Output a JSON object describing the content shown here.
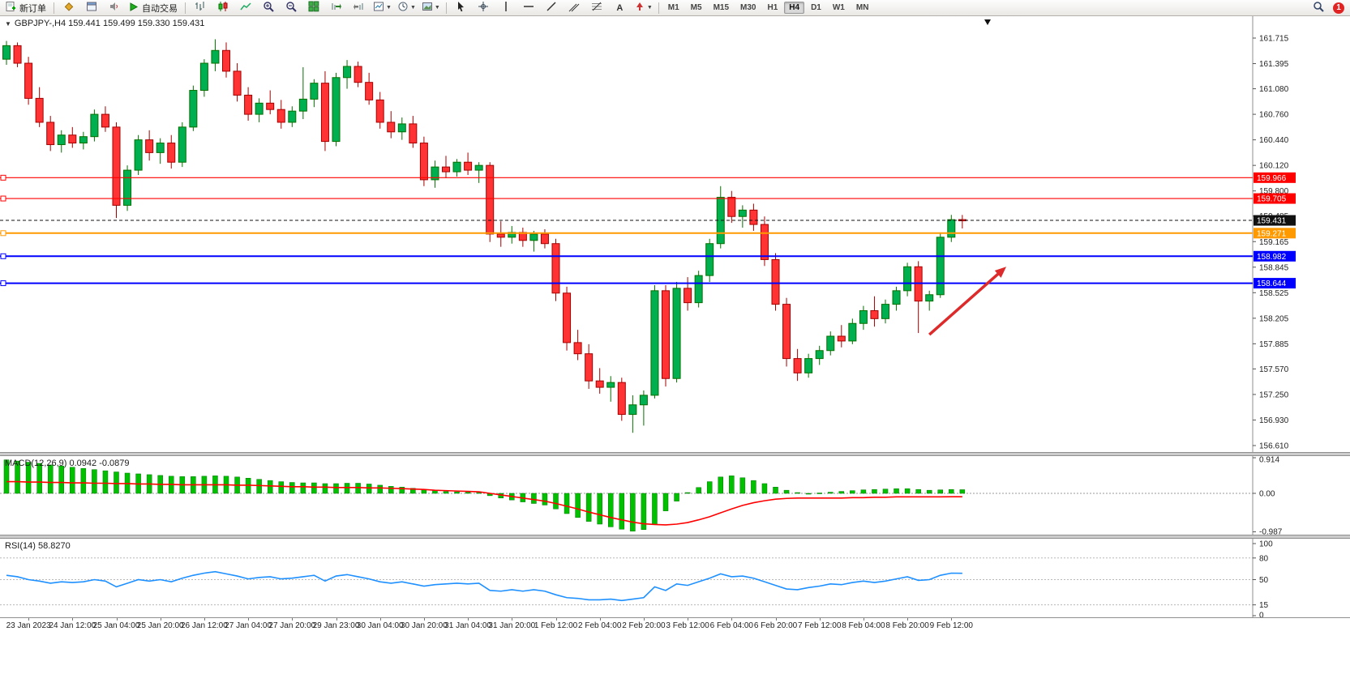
{
  "toolbar": {
    "new_order": "新订单",
    "autotrade": "自动交易",
    "timeframes": [
      "M1",
      "M5",
      "M15",
      "M30",
      "H1",
      "H4",
      "D1",
      "W1",
      "MN"
    ],
    "active_timeframe": "H4",
    "notification_badge": "1"
  },
  "chart": {
    "collapse_glyph": "▼",
    "symbol_ohlc": "GBPJPY-,H4 159.441 159.499 159.330 159.431"
  },
  "chart_data": {
    "type": "candlestick",
    "symbol": "GBPJPY-",
    "period": "H4",
    "current": {
      "open": "159.441",
      "high": "159.499",
      "low": "159.330",
      "close": "159.431"
    },
    "up_color": "#00B050",
    "up_stroke": "#067000",
    "down_color": "#FF3333",
    "down_stroke": "#A50000",
    "price_axis": [
      "161.715",
      "161.395",
      "161.080",
      "160.760",
      "160.440",
      "160.120",
      "159.800",
      "159.485",
      "159.165",
      "158.845",
      "158.525",
      "158.205",
      "157.885",
      "157.570",
      "157.250",
      "156.930",
      "156.610"
    ],
    "hlines": [
      {
        "label": "159.966",
        "value": 159.966,
        "color": "#FF0000",
        "width": 1.2
      },
      {
        "label": "159.705",
        "value": 159.705,
        "color": "#FF0000",
        "width": 1.2
      },
      {
        "label": "159.271",
        "value": 159.271,
        "color": "#FF9900",
        "width": 2
      },
      {
        "label": "158.982",
        "value": 158.982,
        "color": "#0000FF",
        "width": 2
      },
      {
        "label": "158.644",
        "value": 158.644,
        "color": "#0000FF",
        "width": 2
      }
    ],
    "last_price": {
      "label": "159.431",
      "value": 159.431,
      "color": "#111111"
    },
    "arrow": {
      "from_index": 84,
      "from_price": 158.0,
      "to_index": 91,
      "to_price": 158.85,
      "color": "#DD2A2A"
    },
    "top_marker_index": 89.3,
    "candles": [
      [
        161.45,
        161.68,
        161.38,
        161.62
      ],
      [
        161.62,
        161.66,
        161.35,
        161.4
      ],
      [
        161.4,
        161.48,
        160.88,
        160.96
      ],
      [
        160.96,
        161.1,
        160.6,
        160.66
      ],
      [
        160.66,
        160.74,
        160.3,
        160.38
      ],
      [
        160.38,
        160.56,
        160.28,
        160.5
      ],
      [
        160.5,
        160.6,
        160.34,
        160.4
      ],
      [
        160.4,
        160.54,
        160.32,
        160.48
      ],
      [
        160.48,
        160.82,
        160.42,
        160.76
      ],
      [
        160.76,
        160.86,
        160.54,
        160.6
      ],
      [
        160.6,
        160.66,
        159.46,
        159.62
      ],
      [
        159.62,
        160.12,
        159.55,
        160.06
      ],
      [
        160.06,
        160.5,
        160.0,
        160.44
      ],
      [
        160.44,
        160.56,
        160.18,
        160.28
      ],
      [
        160.28,
        160.46,
        160.14,
        160.4
      ],
      [
        160.4,
        160.5,
        160.08,
        160.16
      ],
      [
        160.16,
        160.66,
        160.1,
        160.6
      ],
      [
        160.6,
        161.12,
        160.55,
        161.06
      ],
      [
        161.06,
        161.45,
        160.98,
        161.4
      ],
      [
        161.4,
        161.7,
        161.3,
        161.56
      ],
      [
        161.56,
        161.66,
        161.22,
        161.3
      ],
      [
        161.3,
        161.4,
        160.92,
        161.0
      ],
      [
        161.0,
        161.1,
        160.68,
        160.76
      ],
      [
        160.76,
        160.96,
        160.66,
        160.9
      ],
      [
        160.9,
        161.06,
        160.76,
        160.82
      ],
      [
        160.82,
        160.94,
        160.58,
        160.66
      ],
      [
        160.66,
        160.86,
        160.6,
        160.8
      ],
      [
        160.8,
        161.35,
        160.7,
        160.95
      ],
      [
        160.95,
        161.2,
        160.85,
        161.15
      ],
      [
        161.15,
        161.3,
        160.3,
        160.42
      ],
      [
        160.42,
        161.28,
        160.36,
        161.22
      ],
      [
        161.22,
        161.44,
        161.08,
        161.36
      ],
      [
        161.36,
        161.42,
        161.1,
        161.16
      ],
      [
        161.16,
        161.28,
        160.88,
        160.94
      ],
      [
        160.94,
        161.04,
        160.58,
        160.66
      ],
      [
        160.66,
        160.8,
        160.46,
        160.54
      ],
      [
        160.54,
        160.72,
        160.44,
        160.64
      ],
      [
        160.64,
        160.74,
        160.34,
        160.4
      ],
      [
        160.4,
        160.48,
        159.86,
        159.94
      ],
      [
        159.94,
        160.18,
        159.84,
        160.1
      ],
      [
        160.1,
        160.24,
        159.96,
        160.04
      ],
      [
        160.04,
        160.2,
        159.98,
        160.16
      ],
      [
        160.16,
        160.28,
        160.0,
        160.06
      ],
      [
        160.06,
        160.16,
        159.9,
        160.12
      ],
      [
        160.12,
        160.16,
        159.16,
        159.26
      ],
      [
        159.26,
        159.42,
        159.1,
        159.22
      ],
      [
        159.22,
        159.36,
        159.14,
        159.28
      ],
      [
        159.28,
        159.34,
        159.1,
        159.18
      ],
      [
        159.18,
        159.3,
        159.04,
        159.26
      ],
      [
        159.26,
        159.32,
        159.08,
        159.14
      ],
      [
        159.14,
        159.2,
        158.42,
        158.52
      ],
      [
        158.52,
        158.6,
        157.8,
        157.9
      ],
      [
        157.9,
        158.06,
        157.68,
        157.76
      ],
      [
        157.76,
        157.88,
        157.32,
        157.42
      ],
      [
        157.42,
        157.58,
        157.26,
        157.34
      ],
      [
        157.34,
        157.48,
        157.16,
        157.4
      ],
      [
        157.4,
        157.46,
        156.92,
        157.0
      ],
      [
        157.0,
        157.24,
        156.77,
        157.12
      ],
      [
        157.12,
        157.3,
        156.86,
        157.24
      ],
      [
        157.24,
        158.62,
        157.2,
        158.55
      ],
      [
        158.55,
        158.62,
        157.35,
        157.45
      ],
      [
        157.45,
        158.66,
        157.4,
        158.58
      ],
      [
        158.58,
        158.72,
        158.3,
        158.4
      ],
      [
        158.4,
        158.8,
        158.34,
        158.74
      ],
      [
        158.74,
        159.2,
        158.66,
        159.14
      ],
      [
        159.14,
        159.86,
        159.08,
        159.72
      ],
      [
        159.72,
        159.8,
        159.4,
        159.48
      ],
      [
        159.48,
        159.62,
        159.34,
        159.56
      ],
      [
        159.56,
        159.64,
        159.3,
        159.38
      ],
      [
        159.38,
        159.48,
        158.86,
        158.94
      ],
      [
        158.94,
        159.02,
        158.3,
        158.38
      ],
      [
        158.38,
        158.46,
        157.6,
        157.7
      ],
      [
        157.7,
        157.82,
        157.42,
        157.52
      ],
      [
        157.52,
        157.76,
        157.46,
        157.7
      ],
      [
        157.7,
        157.86,
        157.62,
        157.8
      ],
      [
        157.8,
        158.04,
        157.74,
        157.98
      ],
      [
        157.98,
        158.12,
        157.84,
        157.92
      ],
      [
        157.92,
        158.2,
        157.88,
        158.14
      ],
      [
        158.14,
        158.36,
        158.06,
        158.3
      ],
      [
        158.3,
        158.48,
        158.1,
        158.2
      ],
      [
        158.2,
        158.44,
        158.14,
        158.38
      ],
      [
        158.38,
        158.6,
        158.3,
        158.55
      ],
      [
        158.55,
        158.9,
        158.48,
        158.85
      ],
      [
        158.85,
        158.92,
        158.02,
        158.42
      ],
      [
        158.42,
        158.55,
        158.3,
        158.5
      ],
      [
        158.5,
        159.28,
        158.46,
        159.22
      ],
      [
        159.22,
        159.5,
        159.16,
        159.44
      ],
      [
        159.441,
        159.499,
        159.33,
        159.431
      ]
    ],
    "time_labels": [
      "23 Jan 2023",
      "24 Jan 12:00",
      "25 Jan 04:00",
      "25 Jan 20:00",
      "26 Jan 12:00",
      "27 Jan 04:00",
      "27 Jan 20:00",
      "29 Jan 23:00",
      "30 Jan 04:00",
      "30 Jan 20:00",
      "31 Jan 04:00",
      "31 Jan 20:00",
      "1 Feb 12:00",
      "2 Feb 04:00",
      "2 Feb 20:00",
      "3 Feb 12:00",
      "6 Feb 04:00",
      "6 Feb 20:00",
      "7 Feb 12:00",
      "8 Feb 04:00",
      "8 Feb 20:00",
      "9 Feb 12:00"
    ],
    "time_label_start_index": 2,
    "time_label_step": 4,
    "macd": {
      "label": "MACD(12,26,9)",
      "value_main": "0.0942",
      "value_signal": "-0.0879",
      "hist_color": "#00C000",
      "signal_color": "#FF0000",
      "axis": [
        {
          "label": "0.914",
          "value": 0.914
        },
        {
          "label": "0.00",
          "value": 0
        },
        {
          "label": "-0.987",
          "value": -0.987
        }
      ],
      "histogram": [
        0.86,
        0.83,
        0.8,
        0.77,
        0.73,
        0.7,
        0.67,
        0.64,
        0.61,
        0.58,
        0.55,
        0.52,
        0.5,
        0.48,
        0.46,
        0.44,
        0.43,
        0.43,
        0.44,
        0.45,
        0.44,
        0.42,
        0.39,
        0.36,
        0.33,
        0.3,
        0.28,
        0.27,
        0.27,
        0.25,
        0.25,
        0.26,
        0.26,
        0.24,
        0.21,
        0.18,
        0.16,
        0.13,
        0.1,
        0.07,
        0.05,
        0.04,
        0.03,
        0.02,
        -0.06,
        -0.12,
        -0.17,
        -0.22,
        -0.26,
        -0.3,
        -0.4,
        -0.52,
        -0.62,
        -0.72,
        -0.79,
        -0.86,
        -0.92,
        -0.97,
        -0.93,
        -0.8,
        -0.45,
        -0.2,
        0.02,
        0.15,
        0.3,
        0.42,
        0.45,
        0.4,
        0.33,
        0.25,
        0.16,
        0.08,
        0.02,
        0.0,
        0.01,
        0.03,
        0.05,
        0.07,
        0.09,
        0.1,
        0.11,
        0.12,
        0.12,
        0.1,
        0.08,
        0.09,
        0.1,
        0.0942
      ],
      "signal": [
        0.3,
        0.3,
        0.29,
        0.29,
        0.28,
        0.28,
        0.27,
        0.27,
        0.26,
        0.26,
        0.25,
        0.25,
        0.24,
        0.24,
        0.23,
        0.23,
        0.22,
        0.22,
        0.22,
        0.22,
        0.22,
        0.21,
        0.21,
        0.2,
        0.19,
        0.18,
        0.17,
        0.17,
        0.16,
        0.16,
        0.15,
        0.15,
        0.15,
        0.14,
        0.14,
        0.13,
        0.12,
        0.11,
        0.1,
        0.08,
        0.07,
        0.06,
        0.05,
        0.04,
        0.0,
        -0.04,
        -0.08,
        -0.12,
        -0.16,
        -0.2,
        -0.26,
        -0.33,
        -0.4,
        -0.48,
        -0.55,
        -0.62,
        -0.68,
        -0.74,
        -0.78,
        -0.8,
        -0.81,
        -0.79,
        -0.75,
        -0.68,
        -0.6,
        -0.5,
        -0.4,
        -0.31,
        -0.24,
        -0.19,
        -0.15,
        -0.13,
        -0.12,
        -0.12,
        -0.12,
        -0.12,
        -0.12,
        -0.11,
        -0.11,
        -0.1,
        -0.1,
        -0.09,
        -0.09,
        -0.09,
        -0.09,
        -0.09,
        -0.088,
        -0.0879
      ]
    },
    "rsi": {
      "label": "RSI(14)",
      "value": "58.8270",
      "line_color": "#1E90FF",
      "axis": [
        {
          "label": "100",
          "value": 100
        },
        {
          "label": "80",
          "value": 80
        },
        {
          "label": "50",
          "value": 50
        },
        {
          "label": "15",
          "value": 15
        },
        {
          "label": "0",
          "value": 0
        }
      ],
      "levels": [
        80,
        50,
        15
      ],
      "values": [
        56,
        54,
        50,
        48,
        45,
        47,
        46,
        47,
        50,
        48,
        40,
        45,
        50,
        48,
        50,
        47,
        52,
        56,
        59,
        61,
        58,
        55,
        51,
        53,
        54,
        51,
        52,
        54,
        56,
        48,
        55,
        57,
        54,
        51,
        47,
        45,
        47,
        44,
        41,
        43,
        44,
        45,
        44,
        45,
        35,
        34,
        36,
        34,
        36,
        34,
        29,
        25,
        24,
        22,
        22,
        23,
        21,
        23,
        25,
        40,
        35,
        44,
        42,
        47,
        52,
        58,
        54,
        55,
        52,
        47,
        42,
        37,
        36,
        39,
        41,
        44,
        43,
        46,
        48,
        46,
        48,
        51,
        54,
        49,
        50,
        56,
        59,
        58.83
      ]
    }
  }
}
